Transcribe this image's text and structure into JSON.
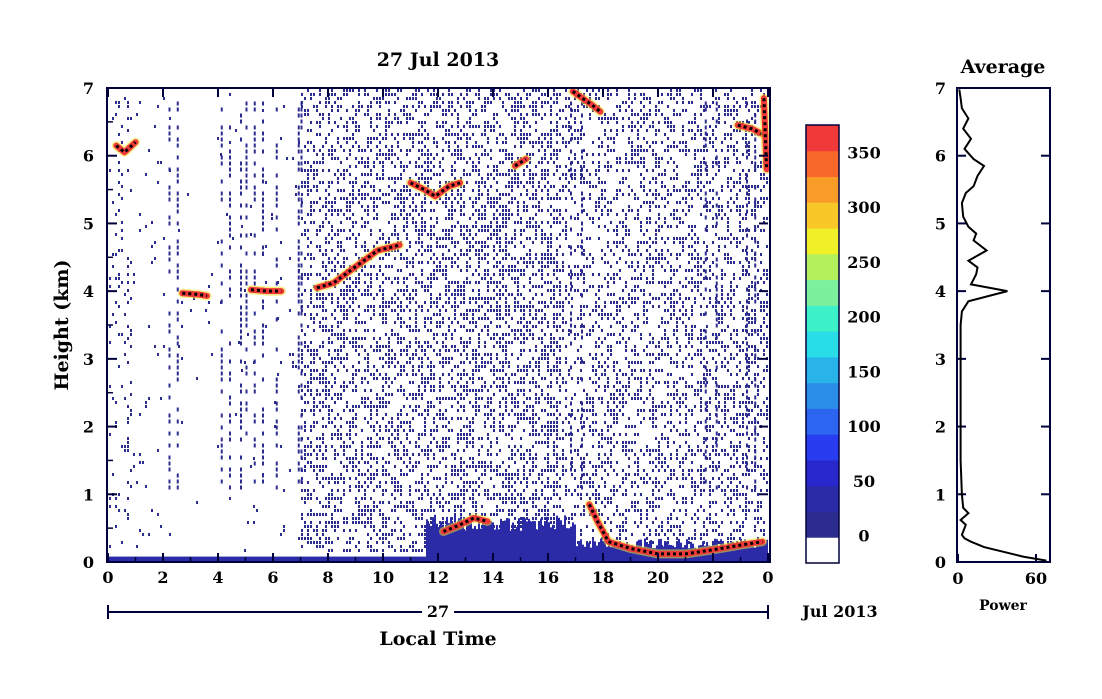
{
  "chart_data": [
    {
      "type": "heatmap",
      "title": "27 Jul 2013",
      "xlabel": "Local Time",
      "ylabel": "Height (km)",
      "x_ticks": [
        "0",
        "2",
        "4",
        "6",
        "8",
        "10",
        "12",
        "14",
        "16",
        "18",
        "20",
        "22",
        "0"
      ],
      "y_ticks": [
        "0",
        "1",
        "2",
        "3",
        "4",
        "5",
        "6",
        "7"
      ],
      "xlim": [
        0,
        24
      ],
      "ylim": [
        0,
        7
      ],
      "date_axis": {
        "day_label": "27",
        "month_label": "Jul 2013"
      },
      "colorbar": {
        "tick_labels": [
          "0",
          "50",
          "100",
          "150",
          "200",
          "250",
          "300",
          "350"
        ],
        "range": [
          -25,
          375
        ],
        "colors": [
          "#ffffff",
          "#2c2c8f",
          "#2b2ba8",
          "#2828cc",
          "#2a3cf0",
          "#2c66f0",
          "#2a8ee8",
          "#28b4e8",
          "#28dce8",
          "#3cf0c8",
          "#7cf09c",
          "#b4f05c",
          "#f0f028",
          "#f8c828",
          "#f89c28",
          "#f86828",
          "#f03a3a"
        ]
      },
      "features": [
        {
          "kind": "surface_layer",
          "x_range": [
            0,
            24
          ],
          "height_km": 0.08
        },
        {
          "kind": "layer",
          "points": [
            [
              0.3,
              6.15
            ],
            [
              0.6,
              6.05
            ],
            [
              1.0,
              6.2
            ]
          ]
        },
        {
          "kind": "layer",
          "points": [
            [
              2.7,
              3.97
            ],
            [
              3.3,
              3.95
            ],
            [
              3.6,
              3.93
            ]
          ]
        },
        {
          "kind": "layer",
          "points": [
            [
              5.2,
              4.02
            ],
            [
              5.8,
              4.0
            ],
            [
              6.3,
              4.0
            ]
          ]
        },
        {
          "kind": "layer",
          "points": [
            [
              7.6,
              4.05
            ],
            [
              8.2,
              4.12
            ],
            [
              8.8,
              4.3
            ],
            [
              9.3,
              4.45
            ],
            [
              9.8,
              4.6
            ],
            [
              10.6,
              4.68
            ]
          ]
        },
        {
          "kind": "layer",
          "points": [
            [
              11.0,
              5.6
            ],
            [
              11.5,
              5.5
            ],
            [
              11.9,
              5.4
            ],
            [
              12.4,
              5.55
            ],
            [
              12.8,
              5.6
            ]
          ]
        },
        {
          "kind": "layer",
          "points": [
            [
              14.8,
              5.85
            ],
            [
              15.2,
              5.95
            ]
          ]
        },
        {
          "kind": "layer",
          "points": [
            [
              12.2,
              0.45
            ],
            [
              12.8,
              0.55
            ],
            [
              13.3,
              0.65
            ],
            [
              13.8,
              0.6
            ]
          ]
        },
        {
          "kind": "layer",
          "points": [
            [
              17.5,
              0.85
            ],
            [
              17.8,
              0.6
            ],
            [
              18.2,
              0.3
            ],
            [
              19.0,
              0.2
            ],
            [
              20.0,
              0.12
            ],
            [
              21.0,
              0.12
            ],
            [
              22.0,
              0.18
            ],
            [
              23.0,
              0.25
            ],
            [
              23.8,
              0.3
            ]
          ]
        },
        {
          "kind": "layer",
          "points": [
            [
              16.9,
              6.95
            ],
            [
              17.6,
              6.75
            ],
            [
              17.9,
              6.65
            ]
          ]
        },
        {
          "kind": "layer",
          "points": [
            [
              22.9,
              6.45
            ],
            [
              23.4,
              6.4
            ],
            [
              23.9,
              6.3
            ]
          ]
        },
        {
          "kind": "layer",
          "points": [
            [
              23.85,
              6.85
            ],
            [
              23.95,
              5.8
            ]
          ]
        }
      ]
    },
    {
      "type": "line",
      "title": "Average",
      "xlabel": "Power",
      "ylabel": "",
      "x_ticks": [
        "0",
        "60"
      ],
      "y_ticks": [
        "0",
        "1",
        "2",
        "3",
        "4",
        "5",
        "6",
        "7"
      ],
      "xlim": [
        0,
        70
      ],
      "ylim": [
        0,
        7
      ],
      "series": [
        {
          "x": [
            68,
            50,
            35,
            20,
            10,
            5,
            3,
            6,
            2,
            8,
            4,
            3,
            2,
            2,
            2,
            2,
            2,
            3,
            8,
            38,
            10,
            14,
            15,
            8,
            22,
            12,
            14,
            8,
            4,
            3,
            6,
            12,
            15,
            20,
            12,
            5,
            10,
            4,
            8,
            3,
            2,
            1
          ],
          "y": [
            0.02,
            0.08,
            0.15,
            0.22,
            0.3,
            0.35,
            0.4,
            0.55,
            0.62,
            0.72,
            0.8,
            1.0,
            1.5,
            2.0,
            2.5,
            3.0,
            3.5,
            3.7,
            3.85,
            4.0,
            4.1,
            4.25,
            4.35,
            4.45,
            4.6,
            4.75,
            4.85,
            4.95,
            5.1,
            5.3,
            5.45,
            5.55,
            5.7,
            5.85,
            5.95,
            6.1,
            6.25,
            6.4,
            6.55,
            6.7,
            6.85,
            6.98
          ]
        }
      ]
    }
  ]
}
